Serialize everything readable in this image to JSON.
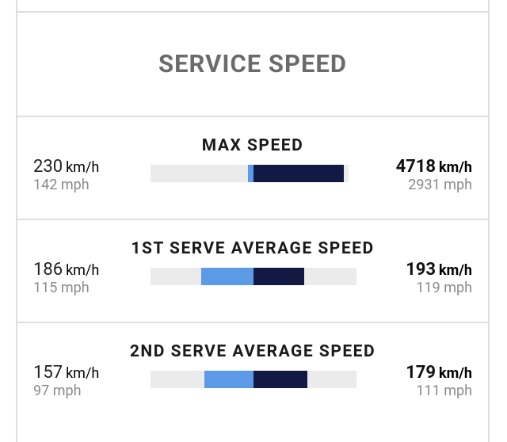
{
  "header": {
    "title": "SERVICE SPEED"
  },
  "stats": [
    {
      "name": "MAX SPEED",
      "left": {
        "kmh": "230",
        "unit": "km/h",
        "mph": "142 mph"
      },
      "right": {
        "kmh": "4718",
        "unit": "km/h",
        "mph": "2931 mph"
      },
      "left_value": 230,
      "right_value": 4718
    },
    {
      "name": "1ST SERVE AVERAGE SPEED",
      "left": {
        "kmh": "186",
        "unit": "km/h",
        "mph": "115 mph"
      },
      "right": {
        "kmh": "193",
        "unit": "km/h",
        "mph": "119 mph"
      },
      "left_value": 186,
      "right_value": 193
    },
    {
      "name": "2ND SERVE AVERAGE SPEED",
      "left": {
        "kmh": "157",
        "unit": "km/h",
        "mph": "97 mph"
      },
      "right": {
        "kmh": "179",
        "unit": "km/h",
        "mph": "111 mph"
      },
      "left_value": 157,
      "right_value": 179
    }
  ],
  "colors": {
    "left_bar": "#5b9ae6",
    "right_bar": "#121a44",
    "track": "#ebebeb",
    "title": "#6b6b6b",
    "border": "#dedede"
  }
}
